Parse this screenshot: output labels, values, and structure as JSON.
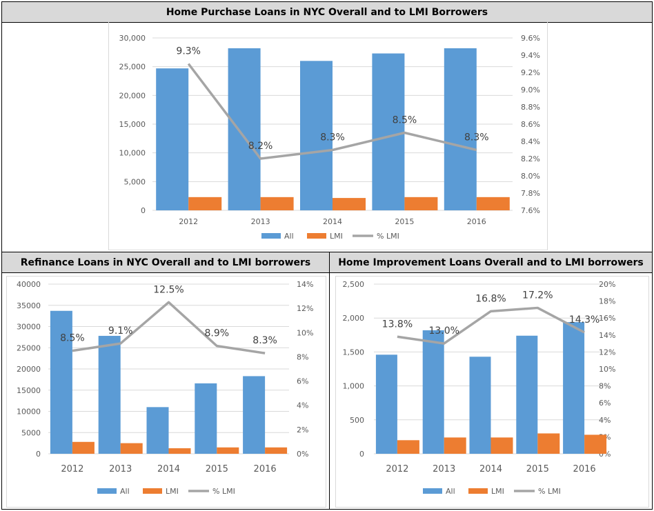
{
  "colors": {
    "all": "#5b9bd5",
    "lmi": "#ed7d31",
    "pct": "#a5a5a5",
    "grid": "#d9d9d9",
    "text": "#595959"
  },
  "panels": {
    "top": {
      "title": "Home Purchase Loans in NYC Overall and to LMI Borrowers"
    },
    "left": {
      "title": "Refinance Loans in NYC Overall and to LMI borrowers"
    },
    "right": {
      "title": "Home Improvement Loans Overall and to LMI borrowers"
    }
  },
  "chart_data": [
    {
      "id": "purchase",
      "type": "bar",
      "title": "Home Purchase Loans in NYC Overall and to LMI Borrowers",
      "categories": [
        "2012",
        "2013",
        "2014",
        "2015",
        "2016"
      ],
      "series": [
        {
          "name": "All",
          "type": "bar",
          "axis": "left",
          "values": [
            24700,
            28200,
            26000,
            27300,
            28200
          ]
        },
        {
          "name": "LMI",
          "type": "bar",
          "axis": "left",
          "values": [
            2300,
            2300,
            2150,
            2300,
            2300
          ]
        },
        {
          "name": "% LMI",
          "type": "line",
          "axis": "right",
          "values": [
            9.3,
            8.2,
            8.3,
            8.5,
            8.3
          ],
          "labels": [
            "9.3%",
            "8.2%",
            "8.3%",
            "8.5%",
            "8.3%"
          ]
        }
      ],
      "ylim": [
        0,
        30000
      ],
      "yticks": [
        "0",
        "5,000",
        "10,000",
        "15,000",
        "20,000",
        "25,000",
        "30,000"
      ],
      "y2lim": [
        7.6,
        9.6
      ],
      "y2ticks": [
        "7.6%",
        "7.8%",
        "8.0%",
        "8.2%",
        "8.4%",
        "8.6%",
        "8.8%",
        "9.0%",
        "9.2%",
        "9.4%",
        "9.6%"
      ],
      "grid": true,
      "legend": "bottom"
    },
    {
      "id": "refinance",
      "type": "bar",
      "title": "Refinance Loans in NYC Overall and to LMI borrowers",
      "categories": [
        "2012",
        "2013",
        "2014",
        "2015",
        "2016"
      ],
      "series": [
        {
          "name": "All",
          "type": "bar",
          "axis": "left",
          "values": [
            33700,
            27800,
            11000,
            16600,
            18300
          ]
        },
        {
          "name": "LMI",
          "type": "bar",
          "axis": "left",
          "values": [
            2800,
            2500,
            1300,
            1500,
            1500
          ]
        },
        {
          "name": "% LMI",
          "type": "line",
          "axis": "right",
          "values": [
            8.5,
            9.1,
            12.5,
            8.9,
            8.3
          ],
          "labels": [
            "8.5%",
            "9.1%",
            "12.5%",
            "8.9%",
            "8.3%"
          ]
        }
      ],
      "ylim": [
        0,
        40000
      ],
      "yticks": [
        "0",
        "5000",
        "10000",
        "15000",
        "20000",
        "25000",
        "30000",
        "35000",
        "40000"
      ],
      "y2lim": [
        0,
        14
      ],
      "y2ticks": [
        "0%",
        "2%",
        "4%",
        "6%",
        "8%",
        "10%",
        "12%",
        "14%"
      ],
      "grid": true,
      "legend": "bottom"
    },
    {
      "id": "improvement",
      "type": "bar",
      "title": "Home Improvement Loans Overall and to LMI borrowers",
      "categories": [
        "2012",
        "2013",
        "2014",
        "2015",
        "2016"
      ],
      "series": [
        {
          "name": "All",
          "type": "bar",
          "axis": "left",
          "values": [
            1460,
            1820,
            1430,
            1740,
            1940
          ]
        },
        {
          "name": "LMI",
          "type": "bar",
          "axis": "left",
          "values": [
            200,
            240,
            240,
            300,
            280
          ]
        },
        {
          "name": "% LMI",
          "type": "line",
          "axis": "right",
          "values": [
            13.8,
            13.0,
            16.8,
            17.2,
            14.3
          ],
          "labels": [
            "13.8%",
            "13.0%",
            "16.8%",
            "17.2%",
            "14.3%"
          ]
        }
      ],
      "ylim": [
        0,
        2500
      ],
      "yticks": [
        "0",
        "500",
        "1,000",
        "1,500",
        "2,000",
        "2,500"
      ],
      "y2lim": [
        0,
        20
      ],
      "y2ticks": [
        "0%",
        "2%",
        "4%",
        "6%",
        "8%",
        "10%",
        "12%",
        "14%",
        "16%",
        "18%",
        "20%"
      ],
      "grid": true,
      "legend": "bottom"
    }
  ]
}
